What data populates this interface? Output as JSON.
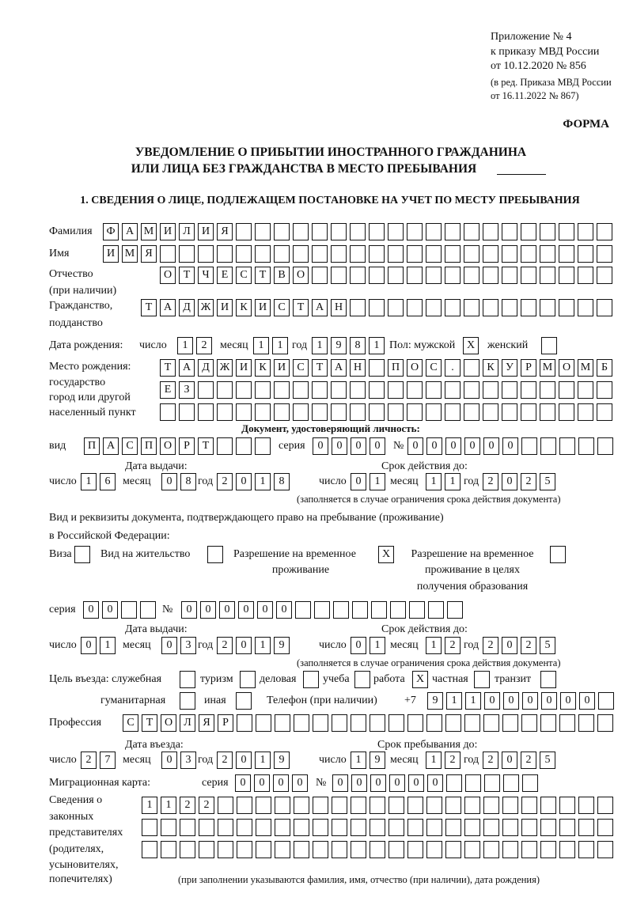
{
  "header": {
    "appendix": [
      "Приложение № 4",
      "к приказу МВД России",
      "от 10.12.2020 № 856",
      "(в ред. Приказа МВД России",
      "от 16.11.2022 № 867)"
    ],
    "form_label": "ФОРМА",
    "title_line1": "УВЕДОМЛЕНИЕ О ПРИБЫТИИ ИНОСТРАННОГО ГРАЖДАНИНА",
    "title_line2": "ИЛИ ЛИЦА БЕЗ ГРАЖДАНСТВА В МЕСТО ПРЕБЫВАНИЯ",
    "section1": "1. СВЕДЕНИЯ О ЛИЦЕ, ПОДЛЕЖАЩЕМ ПОСТАНОВКЕ НА УЧЕТ ПО МЕСТУ ПРЕБЫВАНИЯ"
  },
  "person": {
    "surname_label": "Фамилия",
    "surname": "ФАМИЛИЯ",
    "name_label": "Имя",
    "name": "ИМЯ",
    "patronymic_label": "Отчество",
    "patronymic_note": "(при наличии)",
    "patronymic": "ОТЧЕСТВО",
    "citizenship_label": "Гражданство,",
    "citizenship_label2": "подданство",
    "citizenship": "ТАДЖИКИСТАН",
    "birth_label": "Дата рождения:",
    "day_label": "число",
    "month_label": "месяц",
    "year_label": "год",
    "birth_day": "12",
    "birth_month": "11",
    "birth_year": "1981",
    "sex_label": "Пол: мужской",
    "female_label": "женский",
    "male_mark": "X",
    "female_mark": "",
    "birthplace_labels": [
      "Место рождения:",
      "государство",
      "город или другой",
      "населенный пункт"
    ],
    "birthplace_rows": [
      "ТАДЖИКИСТАН ПОС. КУРМОМБ",
      "ЕЗ",
      ""
    ]
  },
  "id_document": {
    "heading": "Документ, удостоверяющий личность:",
    "kind_label": "вид",
    "kind": "ПАСПОРТ",
    "series_label": "серия",
    "series": "0000",
    "number_label": "№",
    "number": "000000",
    "issue_label": "Дата выдачи:",
    "valid_label": "Срок действия до:",
    "issue_day": "16",
    "issue_month": "08",
    "issue_year": "2018",
    "valid_day": "01",
    "valid_month": "11",
    "valid_year": "2025",
    "valid_note": "(заполняется в случае ограничения срока действия документа)"
  },
  "stay_document": {
    "heading1": "Вид и реквизиты документа, подтверждающего право на пребывание (проживание)",
    "heading2": "в Российской Федерации:",
    "visa_label": "Виза",
    "visa_mark": "",
    "residence_label": "Вид на жительство",
    "residence_mark": "",
    "trp_label1": "Разрешение на временное",
    "trp_label2": "проживание",
    "trp_mark": "X",
    "trp_edu_label1": "Разрешение на временное",
    "trp_edu_label2": "проживание в целях",
    "trp_edu_label3": "получения образования",
    "trp_edu_mark": "",
    "series_label": "серия",
    "series": "00",
    "number_label": "№",
    "number": "000000",
    "issue_label": "Дата выдачи:",
    "valid_label": "Срок действия до:",
    "issue_day": "01",
    "issue_month": "03",
    "issue_year": "2019",
    "valid_day": "01",
    "valid_month": "12",
    "valid_year": "2025",
    "valid_note": "(заполняется в случае ограничения срока действия документа)"
  },
  "purpose": {
    "label": "Цель въезда: служебная",
    "options": [
      {
        "label": "туризм",
        "mark": ""
      },
      {
        "label": "деловая",
        "mark": ""
      },
      {
        "label": "учеба",
        "mark": ""
      },
      {
        "label": "работа",
        "mark": "X"
      },
      {
        "label": "частная",
        "mark": ""
      },
      {
        "label": "транзит",
        "mark": ""
      },
      {
        "label": "гуманитарная",
        "mark": ""
      },
      {
        "label": "иная",
        "mark": ""
      }
    ],
    "service_mark": "",
    "phone_label": "Телефон (при наличии)",
    "phone_prefix": "+7",
    "phone": "911000000"
  },
  "profession": {
    "label": "Профессия",
    "value": "СТОЛЯР"
  },
  "entry": {
    "entry_label": "Дата въезда:",
    "stay_label": "Срок пребывания до:",
    "entry_day": "27",
    "entry_month": "03",
    "entry_year": "2019",
    "stay_day": "19",
    "stay_month": "12",
    "stay_year": "2025"
  },
  "migration_card": {
    "label": "Миграционная карта:",
    "series_label": "серия",
    "series": "0000",
    "number_label": "№",
    "number": "000000"
  },
  "representatives": {
    "labels": [
      "Сведения о",
      "законных",
      "представителях",
      "(родителях,",
      "усыновителях,",
      "попечителях)"
    ],
    "rows": [
      "1122",
      "",
      ""
    ],
    "note": "(при заполнении указываются фамилия, имя, отчество (при наличии), дата рождения)"
  }
}
